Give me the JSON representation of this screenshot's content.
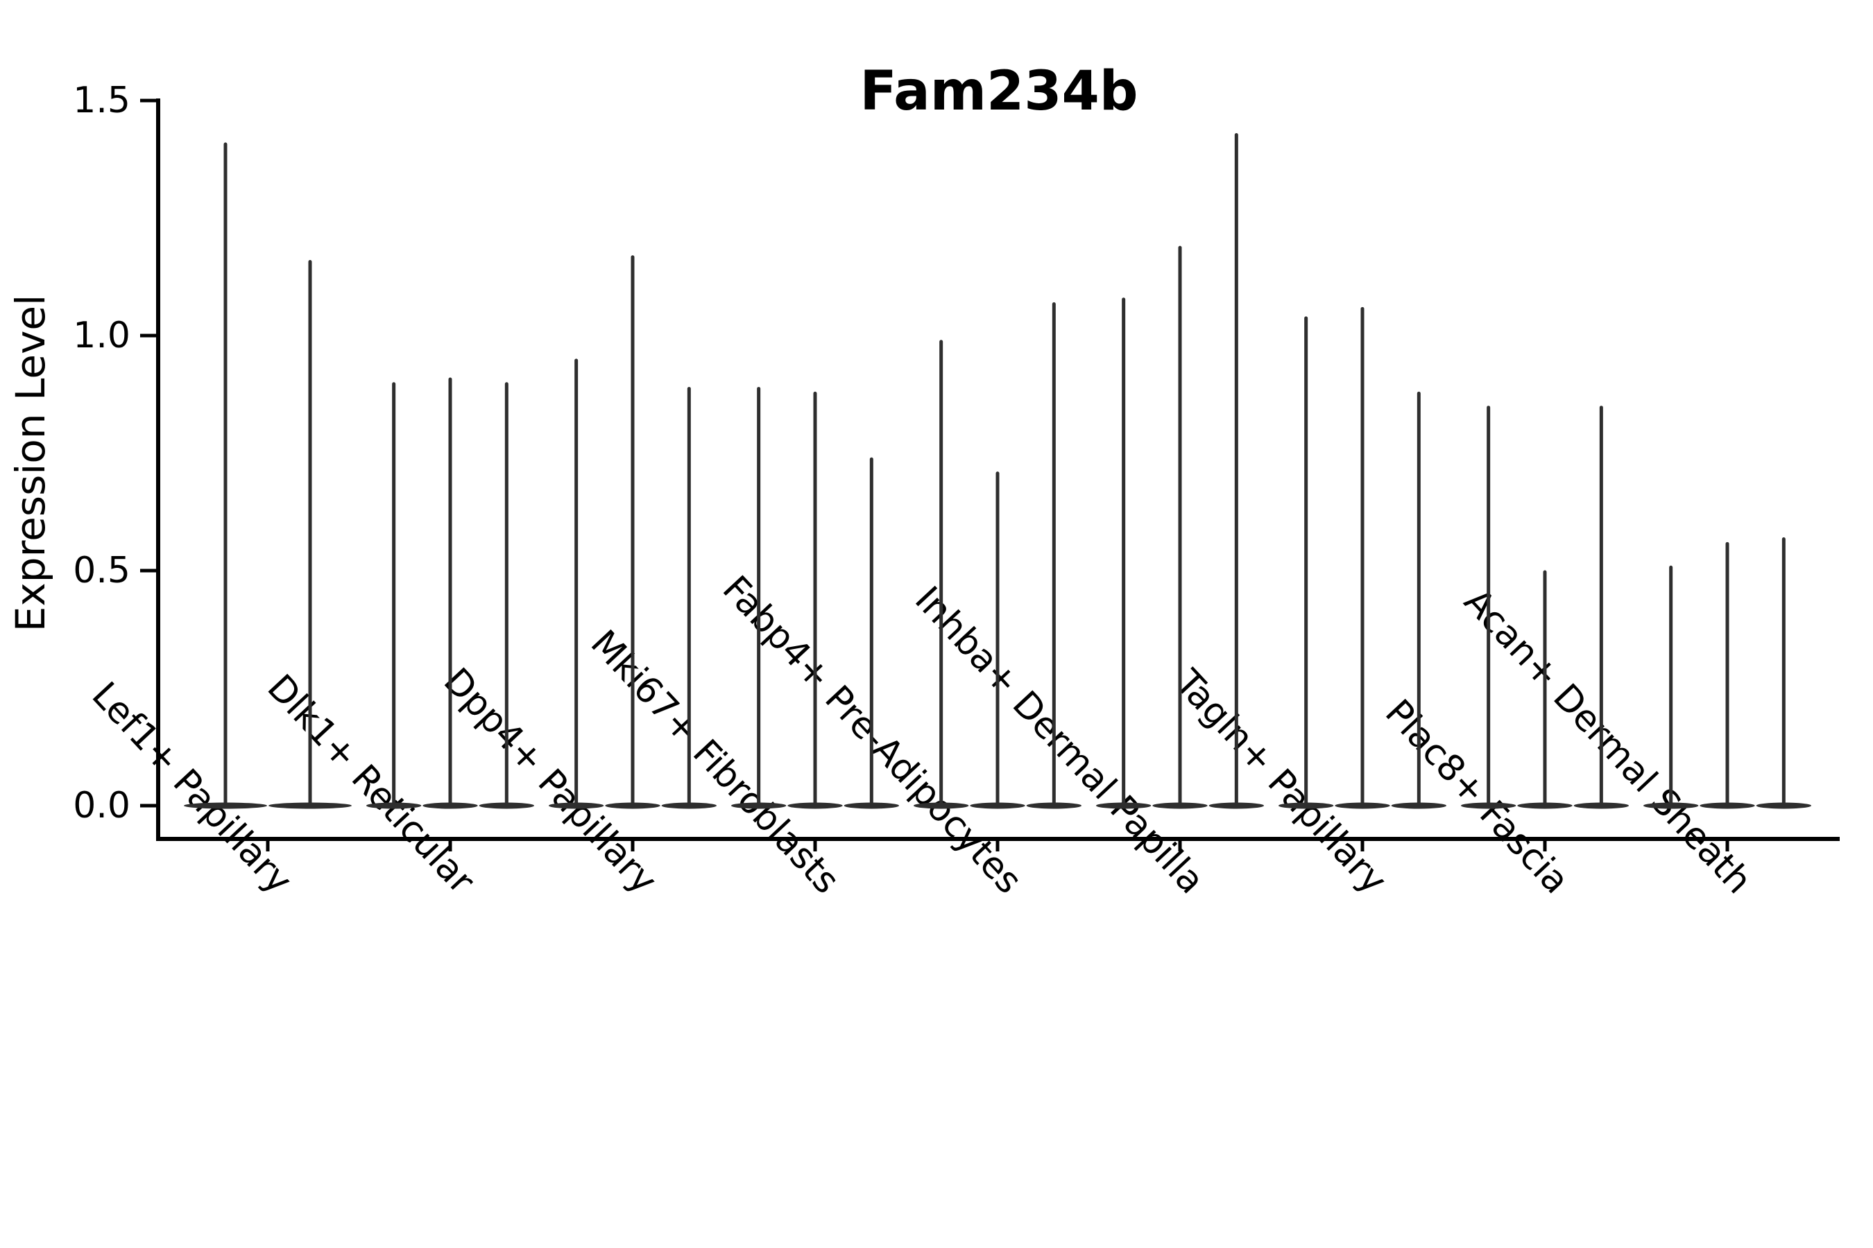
{
  "title": "Fam234b",
  "y_axis": {
    "label": "Expression Level",
    "tick_labels": [
      "0.0",
      "0.5",
      "1.0",
      "1.5"
    ]
  },
  "chart_data": {
    "type": "violin",
    "title": "Fam234b",
    "ylabel": "Expression Level",
    "xlabel": "",
    "ylim": [
      0,
      1.5
    ],
    "yticks": [
      0.0,
      0.5,
      1.0,
      1.5
    ],
    "grid": false,
    "legend": "none",
    "violin_color": "#2e2e2e",
    "axis_color": "#000000",
    "background_color": "#ffffff",
    "categories": [
      "Lef1+ Papillary",
      "Dlk1+ Reticular",
      "Dpp4+ Papillary",
      "Mki67+ Fibroblasts",
      "Fabp4+ Pre-Adipocytes",
      "Inhba+ Dermal Papilla",
      "Tagln+ Papillary",
      "Plac8+ Fascia",
      "Acan+ Dermal Sheath"
    ],
    "series": [
      {
        "category": "Lef1+ Papillary",
        "violin_max_expression": [
          1.41,
          1.16
        ]
      },
      {
        "category": "Dlk1+ Reticular",
        "violin_max_expression": [
          0.9,
          0.91,
          0.9
        ]
      },
      {
        "category": "Dpp4+ Papillary",
        "violin_max_expression": [
          0.95,
          1.17,
          0.89
        ]
      },
      {
        "category": "Mki67+ Fibroblasts",
        "violin_max_expression": [
          0.89,
          0.88,
          0.74
        ]
      },
      {
        "category": "Fabp4+ Pre-Adipocytes",
        "violin_max_expression": [
          0.99,
          0.71,
          1.07
        ]
      },
      {
        "category": "Inhba+ Dermal Papilla",
        "violin_max_expression": [
          1.08,
          1.19,
          1.43
        ]
      },
      {
        "category": "Tagln+ Papillary",
        "violin_max_expression": [
          1.04,
          1.06,
          0.88
        ]
      },
      {
        "category": "Plac8+ Fascia",
        "violin_max_expression": [
          0.85,
          0.5,
          0.85
        ]
      },
      {
        "category": "Acan+ Dermal Sheath",
        "violin_max_expression": [
          0.51,
          0.56,
          0.57
        ]
      }
    ],
    "violins_mode_at_zero": true
  }
}
